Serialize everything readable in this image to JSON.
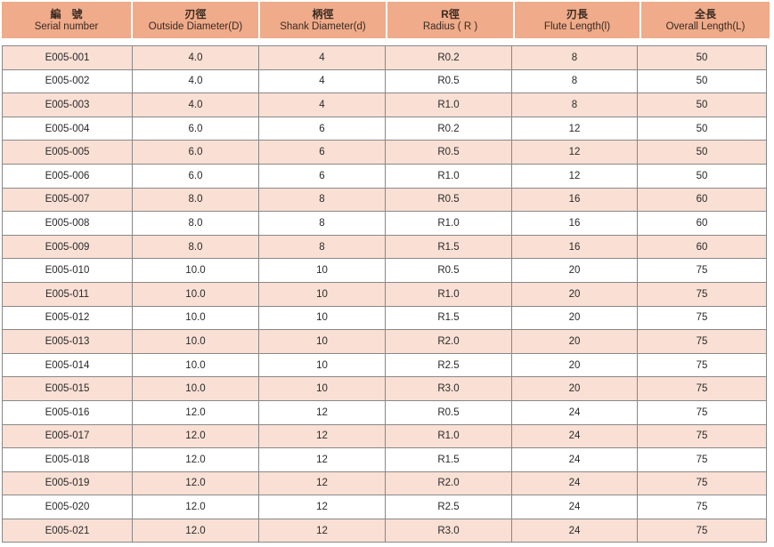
{
  "headers": [
    {
      "zh": "編　號",
      "en": "Serial number"
    },
    {
      "zh": "刃徑",
      "en": "Outside Diameter(D)"
    },
    {
      "zh": "柄徑",
      "en": "Shank Diameter(d)"
    },
    {
      "zh": "R徑",
      "en": "Radius ( R )"
    },
    {
      "zh": "刃長",
      "en": "Flute  Length(l)"
    },
    {
      "zh": "全長",
      "en": "Overall Length(L)"
    }
  ],
  "rows": [
    [
      "E005-001",
      "4.0",
      "4",
      "R0.2",
      "8",
      "50"
    ],
    [
      "E005-002",
      "4.0",
      "4",
      "R0.5",
      "8",
      "50"
    ],
    [
      "E005-003",
      "4.0",
      "4",
      "R1.0",
      "8",
      "50"
    ],
    [
      "E005-004",
      "6.0",
      "6",
      "R0.2",
      "12",
      "50"
    ],
    [
      "E005-005",
      "6.0",
      "6",
      "R0.5",
      "12",
      "50"
    ],
    [
      "E005-006",
      "6.0",
      "6",
      "R1.0",
      "12",
      "50"
    ],
    [
      "E005-007",
      "8.0",
      "8",
      "R0.5",
      "16",
      "60"
    ],
    [
      "E005-008",
      "8.0",
      "8",
      "R1.0",
      "16",
      "60"
    ],
    [
      "E005-009",
      "8.0",
      "8",
      "R1.5",
      "16",
      "60"
    ],
    [
      "E005-010",
      "10.0",
      "10",
      "R0.5",
      "20",
      "75"
    ],
    [
      "E005-011",
      "10.0",
      "10",
      "R1.0",
      "20",
      "75"
    ],
    [
      "E005-012",
      "10.0",
      "10",
      "R1.5",
      "20",
      "75"
    ],
    [
      "E005-013",
      "10.0",
      "10",
      "R2.0",
      "20",
      "75"
    ],
    [
      "E005-014",
      "10.0",
      "10",
      "R2.5",
      "20",
      "75"
    ],
    [
      "E005-015",
      "10.0",
      "10",
      "R3.0",
      "20",
      "75"
    ],
    [
      "E005-016",
      "12.0",
      "12",
      "R0.5",
      "24",
      "75"
    ],
    [
      "E005-017",
      "12.0",
      "12",
      "R1.0",
      "24",
      "75"
    ],
    [
      "E005-018",
      "12.0",
      "12",
      "R1.5",
      "24",
      "75"
    ],
    [
      "E005-019",
      "12.0",
      "12",
      "R2.0",
      "24",
      "75"
    ],
    [
      "E005-020",
      "12.0",
      "12",
      "R2.5",
      "24",
      "75"
    ],
    [
      "E005-021",
      "12.0",
      "12",
      "R3.0",
      "24",
      "75"
    ]
  ],
  "colors": {
    "header": "#efab8a",
    "row_alt": "#f9dfd4",
    "row": "#ffffff"
  }
}
